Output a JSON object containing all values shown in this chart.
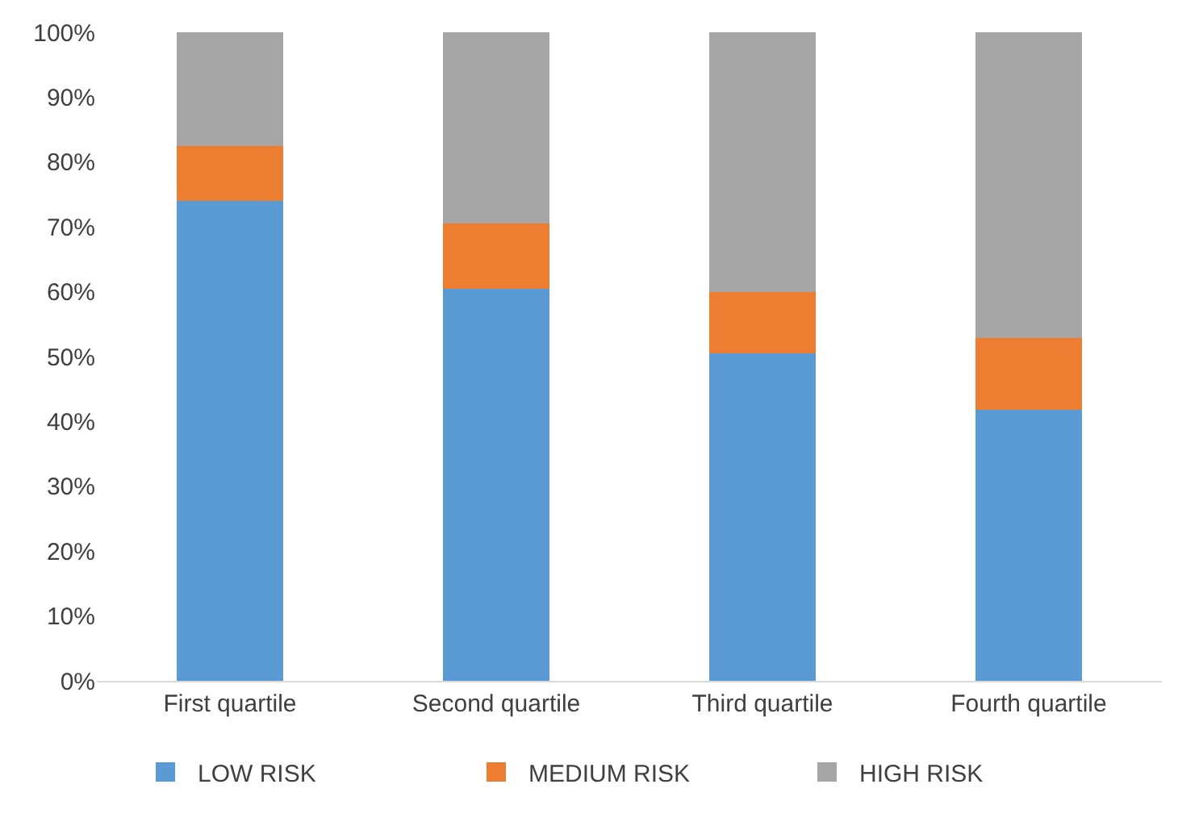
{
  "chart_data": {
    "type": "bar",
    "stacked": true,
    "categories": [
      "First quartile",
      "Second quartile",
      "Third quartile",
      "Fourth quartile"
    ],
    "series": [
      {
        "name": "LOW RISK",
        "color": "#5b9bd5",
        "values": [
          74,
          60.5,
          50.5,
          41.8
        ]
      },
      {
        "name": "MEDIUM RISK",
        "color": "#ed7d31",
        "values": [
          8.5,
          10,
          9.5,
          11
        ]
      },
      {
        "name": "HIGH RISK",
        "color": "#a5a5a5",
        "values": [
          17.5,
          29.5,
          40,
          47.2
        ]
      }
    ],
    "ylim": [
      0,
      100
    ],
    "yticks": [
      {
        "value": 0,
        "label": "0%"
      },
      {
        "value": 10,
        "label": "10%"
      },
      {
        "value": 20,
        "label": "20%"
      },
      {
        "value": 30,
        "label": "30%"
      },
      {
        "value": 40,
        "label": "40%"
      },
      {
        "value": 50,
        "label": "50%"
      },
      {
        "value": 60,
        "label": "60%"
      },
      {
        "value": 70,
        "label": "70%"
      },
      {
        "value": 80,
        "label": "80%"
      },
      {
        "value": 90,
        "label": "90%"
      },
      {
        "value": 100,
        "label": "100%"
      }
    ],
    "grid": false,
    "legend": "bottom"
  }
}
